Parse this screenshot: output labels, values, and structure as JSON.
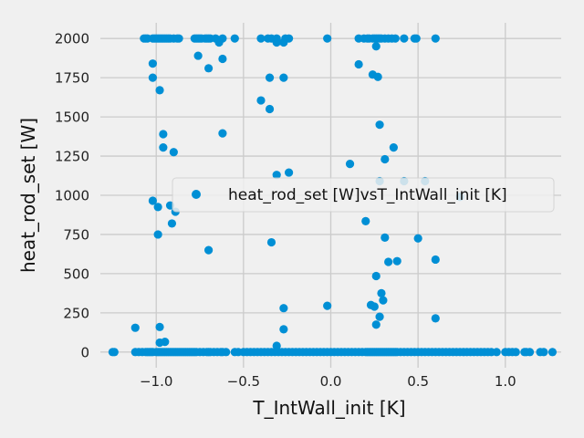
{
  "chart_data": {
    "type": "scatter",
    "xlabel": "T_IntWall_init [K]",
    "ylabel": "heat_rod_set [W]",
    "xlim": [
      -1.32,
      1.32
    ],
    "ylim": [
      -100,
      2100
    ],
    "x_ticks": [
      -1.0,
      -0.5,
      0.0,
      0.5,
      1.0
    ],
    "x_tick_labels": [
      "−1.0",
      "−0.5",
      "0.0",
      "0.5",
      "1.0"
    ],
    "y_ticks": [
      0,
      250,
      500,
      750,
      1000,
      1250,
      1500,
      1750,
      2000
    ],
    "y_tick_labels": [
      "0",
      "250",
      "500",
      "750",
      "1000",
      "1250",
      "1500",
      "1750",
      "2000"
    ],
    "grid": true,
    "legend_position": "center-right",
    "series": [
      {
        "name": "heat_rod_set [W]vsT_IntWall_init [K]",
        "color": "#008fd5",
        "points": [
          [
            -1.25,
            0
          ],
          [
            -1.24,
            0
          ],
          [
            -1.12,
            0
          ],
          [
            -1.1,
            0
          ],
          [
            -1.08,
            0
          ],
          [
            -1.06,
            0
          ],
          [
            -1.05,
            0
          ],
          [
            -1.04,
            0
          ],
          [
            -1.03,
            0
          ],
          [
            -1.02,
            0
          ],
          [
            -1.0,
            0
          ],
          [
            -0.99,
            0
          ],
          [
            -0.98,
            0
          ],
          [
            -0.97,
            0
          ],
          [
            -0.96,
            0
          ],
          [
            -0.95,
            0
          ],
          [
            -0.94,
            0
          ],
          [
            -0.93,
            0
          ],
          [
            -0.92,
            0
          ],
          [
            -0.91,
            0
          ],
          [
            -0.9,
            0
          ],
          [
            -0.89,
            0
          ],
          [
            -0.88,
            0
          ],
          [
            -0.87,
            0
          ],
          [
            -0.86,
            0
          ],
          [
            -0.85,
            0
          ],
          [
            -0.84,
            0
          ],
          [
            -0.83,
            0
          ],
          [
            -0.82,
            0
          ],
          [
            -0.81,
            0
          ],
          [
            -0.8,
            0
          ],
          [
            -0.79,
            0
          ],
          [
            -0.78,
            0
          ],
          [
            -0.77,
            0
          ],
          [
            -0.75,
            0
          ],
          [
            -0.73,
            0
          ],
          [
            -0.71,
            0
          ],
          [
            -0.7,
            0
          ],
          [
            -0.69,
            0
          ],
          [
            -0.67,
            0
          ],
          [
            -0.65,
            0
          ],
          [
            -0.63,
            0
          ],
          [
            -0.62,
            0
          ],
          [
            -0.6,
            0
          ],
          [
            -0.55,
            0
          ],
          [
            -0.53,
            0
          ],
          [
            -0.5,
            0
          ],
          [
            -0.48,
            0
          ],
          [
            -0.46,
            0
          ],
          [
            -0.44,
            0
          ],
          [
            -0.42,
            0
          ],
          [
            -0.4,
            0
          ],
          [
            -0.38,
            0
          ],
          [
            -0.36,
            0
          ],
          [
            -0.34,
            0
          ],
          [
            -0.32,
            0
          ],
          [
            -0.3,
            0
          ],
          [
            -0.28,
            0
          ],
          [
            -0.26,
            0
          ],
          [
            -0.24,
            0
          ],
          [
            -0.22,
            0
          ],
          [
            -0.2,
            0
          ],
          [
            -0.18,
            0
          ],
          [
            -0.16,
            0
          ],
          [
            -0.14,
            0
          ],
          [
            -0.12,
            0
          ],
          [
            -0.1,
            0
          ],
          [
            -0.08,
            0
          ],
          [
            -0.06,
            0
          ],
          [
            -0.04,
            0
          ],
          [
            -0.02,
            0
          ],
          [
            0.0,
            0
          ],
          [
            0.02,
            0
          ],
          [
            0.04,
            0
          ],
          [
            0.06,
            0
          ],
          [
            0.08,
            0
          ],
          [
            0.1,
            0
          ],
          [
            0.12,
            0
          ],
          [
            0.14,
            0
          ],
          [
            0.16,
            0
          ],
          [
            0.18,
            0
          ],
          [
            0.2,
            0
          ],
          [
            0.21,
            0
          ],
          [
            0.22,
            0
          ],
          [
            0.23,
            0
          ],
          [
            0.24,
            0
          ],
          [
            0.25,
            0
          ],
          [
            0.26,
            0
          ],
          [
            0.27,
            0
          ],
          [
            0.28,
            0
          ],
          [
            0.29,
            0
          ],
          [
            0.3,
            0
          ],
          [
            0.31,
            0
          ],
          [
            0.32,
            0
          ],
          [
            0.33,
            0
          ],
          [
            0.34,
            0
          ],
          [
            0.35,
            0
          ],
          [
            0.36,
            0
          ],
          [
            0.37,
            0
          ],
          [
            0.38,
            0
          ],
          [
            0.4,
            0
          ],
          [
            0.42,
            0
          ],
          [
            0.44,
            0
          ],
          [
            0.46,
            0
          ],
          [
            0.48,
            0
          ],
          [
            0.5,
            0
          ],
          [
            0.52,
            0
          ],
          [
            0.54,
            0
          ],
          [
            0.56,
            0
          ],
          [
            0.58,
            0
          ],
          [
            0.6,
            0
          ],
          [
            0.62,
            0
          ],
          [
            0.64,
            0
          ],
          [
            0.66,
            0
          ],
          [
            0.68,
            0
          ],
          [
            0.7,
            0
          ],
          [
            0.72,
            0
          ],
          [
            0.74,
            0
          ],
          [
            0.76,
            0
          ],
          [
            0.78,
            0
          ],
          [
            0.8,
            0
          ],
          [
            0.82,
            0
          ],
          [
            0.84,
            0
          ],
          [
            0.86,
            0
          ],
          [
            0.88,
            0
          ],
          [
            0.9,
            0
          ],
          [
            0.92,
            0
          ],
          [
            0.95,
            0
          ],
          [
            1.0,
            0
          ],
          [
            1.02,
            0
          ],
          [
            1.04,
            0
          ],
          [
            1.06,
            0
          ],
          [
            1.11,
            0
          ],
          [
            1.12,
            0
          ],
          [
            1.14,
            0
          ],
          [
            1.2,
            0
          ],
          [
            1.22,
            0
          ],
          [
            1.27,
            0
          ],
          [
            -1.07,
            2000
          ],
          [
            -1.06,
            2000
          ],
          [
            -1.05,
            2000
          ],
          [
            -1.02,
            2000
          ],
          [
            -1.01,
            2000
          ],
          [
            -1.0,
            2000
          ],
          [
            -0.99,
            2000
          ],
          [
            -0.98,
            2000
          ],
          [
            -0.97,
            2000
          ],
          [
            -0.96,
            2000
          ],
          [
            -0.95,
            2000
          ],
          [
            -0.94,
            2000
          ],
          [
            -0.93,
            2000
          ],
          [
            -0.92,
            2000
          ],
          [
            -0.9,
            2000
          ],
          [
            -0.88,
            2000
          ],
          [
            -0.87,
            2000
          ],
          [
            -0.78,
            2000
          ],
          [
            -0.77,
            2000
          ],
          [
            -0.76,
            2000
          ],
          [
            -0.75,
            2000
          ],
          [
            -0.74,
            2000
          ],
          [
            -0.72,
            2000
          ],
          [
            -0.71,
            2000
          ],
          [
            -0.7,
            2000
          ],
          [
            -0.69,
            2000
          ],
          [
            -0.66,
            2000
          ],
          [
            -0.62,
            2000
          ],
          [
            -0.55,
            2000
          ],
          [
            -0.4,
            2000
          ],
          [
            -0.36,
            2000
          ],
          [
            -0.34,
            2000
          ],
          [
            -0.31,
            2000
          ],
          [
            -0.26,
            2000
          ],
          [
            -0.24,
            2000
          ],
          [
            -0.02,
            2000
          ],
          [
            0.16,
            2000
          ],
          [
            0.19,
            2000
          ],
          [
            0.21,
            2000
          ],
          [
            0.22,
            2000
          ],
          [
            0.24,
            2000
          ],
          [
            0.25,
            2000
          ],
          [
            0.26,
            2000
          ],
          [
            0.27,
            2000
          ],
          [
            0.28,
            2000
          ],
          [
            0.29,
            2000
          ],
          [
            0.31,
            2000
          ],
          [
            0.33,
            2000
          ],
          [
            0.35,
            2000
          ],
          [
            0.37,
            2000
          ],
          [
            0.42,
            2000
          ],
          [
            0.48,
            2000
          ],
          [
            0.49,
            2000
          ],
          [
            0.6,
            2000
          ],
          [
            -0.64,
            1975
          ],
          [
            -0.31,
            1975
          ],
          [
            -0.27,
            1975
          ],
          [
            0.26,
            1950
          ],
          [
            -0.76,
            1890
          ],
          [
            -0.62,
            1870
          ],
          [
            -0.7,
            1810
          ],
          [
            -1.02,
            1840
          ],
          [
            0.16,
            1835
          ],
          [
            0.24,
            1770
          ],
          [
            0.27,
            1755
          ],
          [
            -1.02,
            1750
          ],
          [
            -0.35,
            1750
          ],
          [
            -0.27,
            1750
          ],
          [
            -0.98,
            1670
          ],
          [
            -0.4,
            1605
          ],
          [
            -0.35,
            1550
          ],
          [
            0.28,
            1450
          ],
          [
            -0.96,
            1390
          ],
          [
            -0.62,
            1395
          ],
          [
            -0.96,
            1305
          ],
          [
            0.36,
            1305
          ],
          [
            -0.9,
            1275
          ],
          [
            0.31,
            1230
          ],
          [
            0.11,
            1200
          ],
          [
            -0.24,
            1145
          ],
          [
            -0.31,
            1130
          ],
          [
            0.28,
            1090
          ],
          [
            0.42,
            1090
          ],
          [
            0.54,
            1090
          ],
          [
            0.74,
            990
          ],
          [
            -1.02,
            965
          ],
          [
            -0.99,
            925
          ],
          [
            -0.92,
            935
          ],
          [
            -0.89,
            895
          ],
          [
            -0.91,
            820
          ],
          [
            0.2,
            835
          ],
          [
            -0.99,
            750
          ],
          [
            0.31,
            730
          ],
          [
            0.5,
            725
          ],
          [
            -0.34,
            700
          ],
          [
            -0.7,
            650
          ],
          [
            0.6,
            590
          ],
          [
            0.33,
            575
          ],
          [
            0.38,
            580
          ],
          [
            0.26,
            485
          ],
          [
            0.29,
            375
          ],
          [
            0.3,
            330
          ],
          [
            0.23,
            300
          ],
          [
            0.25,
            290
          ],
          [
            -0.27,
            280
          ],
          [
            -0.02,
            295
          ],
          [
            0.28,
            225
          ],
          [
            0.6,
            215
          ],
          [
            0.26,
            175
          ],
          [
            -1.12,
            155
          ],
          [
            -0.98,
            160
          ],
          [
            -0.27,
            145
          ],
          [
            -0.95,
            65
          ],
          [
            -0.98,
            60
          ],
          [
            -0.31,
            40
          ]
        ]
      }
    ]
  }
}
